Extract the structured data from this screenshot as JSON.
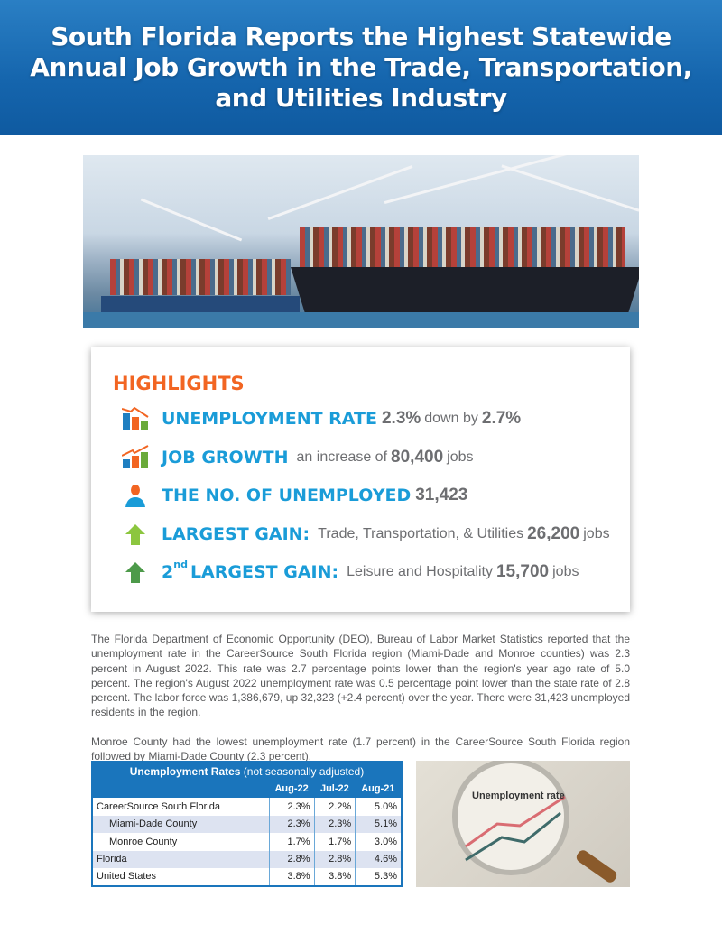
{
  "header": {
    "title": "South Florida Reports the Highest Statewide Annual Job Growth in the Trade, Transportation, and Utilities Industry"
  },
  "highlights": {
    "title": "HIGHLIGHTS",
    "items": [
      {
        "icon": "bar-chart-down-icon",
        "key": "UNEMPLOYMENT RATE",
        "v1": "2.3%",
        "t1": "down by",
        "v2": "2.7%",
        "t2": ""
      },
      {
        "icon": "bar-chart-up-icon",
        "key": "JOB GROWTH",
        "v1": "",
        "t1": "an increase of",
        "v2": "80,400",
        "t2": "jobs"
      },
      {
        "icon": "person-icon",
        "key": "THE NO. OF UNEMPLOYED",
        "v1": "31,423",
        "t1": "",
        "v2": "",
        "t2": ""
      },
      {
        "icon": "arrow-up-icon",
        "key": "LARGEST GAIN:",
        "v1": "",
        "t1": "Trade, Transportation, & Utilities",
        "v2": "26,200",
        "t2": "jobs"
      },
      {
        "icon": "arrow-up-icon",
        "sup": "nd",
        "prefix": "2",
        "key": "LARGEST GAIN:",
        "v1": "",
        "t1": "Leisure and Hospitality",
        "v2": "15,700",
        "t2": "jobs"
      }
    ],
    "colors": {
      "title": "#f26522",
      "key": "#1a9cd8",
      "value": "#6d6e71"
    }
  },
  "body": {
    "p1": "The Florida Department of Economic Opportunity (DEO), Bureau of Labor Market Statistics reported that the unemployment rate in the CareerSource South Florida region (Miami-Dade and Monroe counties) was 2.3 percent in August 2022. This rate was 2.7 percentage points lower than the region's year ago rate of 5.0 percent. The region's August 2022 unemployment rate was 0.5 percentage point lower than the state rate of 2.8 percent. The labor force was 1,386,679, up 32,323 (+2.4 percent) over the year. There were 31,423 unemployed residents in the region.",
    "p2": "Monroe County had the lowest unemployment rate (1.7 percent) in the CareerSource South Florida region followed by Miami-Dade County (2.3 percent)."
  },
  "table": {
    "title_bold": "Unemployment Rates",
    "title_rest": " (not seasonally adjusted)",
    "columns": [
      "",
      "Aug-22",
      "Jul-22",
      "Aug-21"
    ],
    "rows": [
      [
        "CareerSource South Florida",
        "2.3%",
        "2.2%",
        "5.0%"
      ],
      [
        "Miami-Dade County",
        "2.3%",
        "2.3%",
        "5.1%"
      ],
      [
        "Monroe County",
        "1.7%",
        "1.7%",
        "3.0%"
      ],
      [
        "Florida",
        "2.8%",
        "2.8%",
        "4.6%"
      ],
      [
        "United States",
        "3.8%",
        "3.8%",
        "5.3%"
      ]
    ]
  },
  "image_label": "Unemployment rate"
}
